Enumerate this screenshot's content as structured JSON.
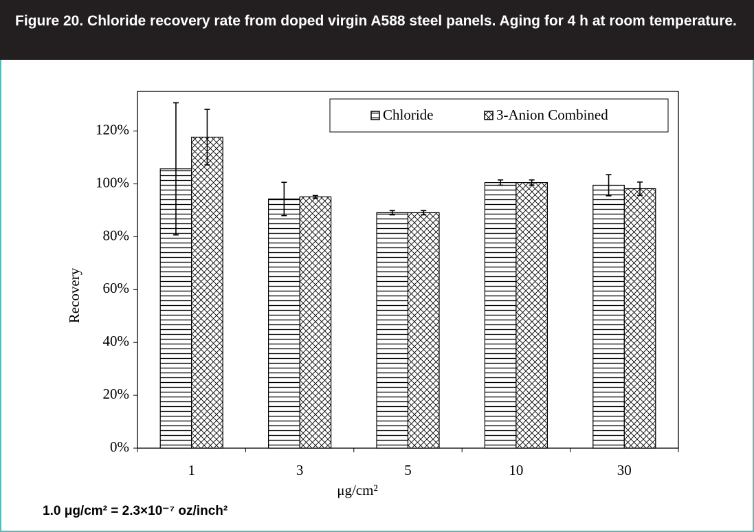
{
  "title": "Figure 20. Chloride recovery rate from doped virgin A588 steel panels. Aging for 4 h at room temperature.",
  "footnote": "1.0 μg/cm² = 2.3×10⁻⁷ oz/inch²",
  "chart_data": {
    "type": "bar",
    "x_label": "μg/cm²",
    "y_label": "Recovery",
    "categories": [
      "1",
      "3",
      "5",
      "10",
      "30"
    ],
    "series": [
      {
        "name": "Chloride",
        "color": "#000000",
        "pattern": "horizontal",
        "values": [
          105.7,
          94.3,
          89.1,
          100.5,
          99.5
        ],
        "errors": [
          25,
          6.3,
          0.8,
          1,
          4
        ]
      },
      {
        "name": "3-Anion Combined",
        "color": "#000000",
        "pattern": "crosshatch",
        "values": [
          117.7,
          95.1,
          89.1,
          100.5,
          98.2
        ],
        "errors": [
          10.5,
          0.5,
          0.8,
          1,
          2.5
        ]
      }
    ],
    "ylim": [
      0,
      135
    ],
    "yticks": [
      {
        "value": 0,
        "label": "0%"
      },
      {
        "value": 20,
        "label": "20%"
      },
      {
        "value": 40,
        "label": "40%"
      },
      {
        "value": 60,
        "label": "60%"
      },
      {
        "value": 80,
        "label": "80%"
      },
      {
        "value": 100,
        "label": "100%"
      },
      {
        "value": 120,
        "label": "120%"
      }
    ],
    "grid": false,
    "legend": "top-right"
  }
}
